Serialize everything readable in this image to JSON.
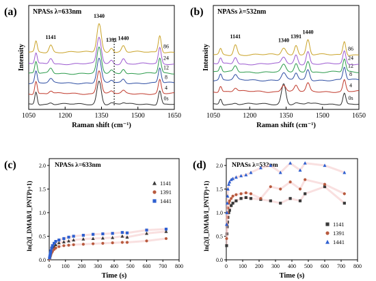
{
  "chart_data": [
    {
      "panel": "(a)",
      "type": "line",
      "title": "NPASs λ=633nm",
      "xlabel": "Raman shift (cm⁻¹)",
      "ylabel": "Intensity",
      "xlim": [
        1050,
        1650
      ],
      "xticks": [
        1050,
        1200,
        1350,
        1500,
        1650
      ],
      "peaks": [
        1080,
        1141,
        1340,
        1391,
        1440,
        1590
      ],
      "peak_labels": [
        {
          "text": "1141",
          "x": 1141,
          "series": 0
        },
        {
          "text": "1340",
          "x": 1340,
          "series": 0
        },
        {
          "text": "1391",
          "x": 1391,
          "series": 0
        },
        {
          "text": "1440",
          "x": 1440,
          "series": 0
        }
      ],
      "dashed_line_x": 1391,
      "series": [
        {
          "name": "0s",
          "color": "#2b2b2b",
          "offset": 0.0,
          "amps": [
            1.2,
            0.15,
            2.2,
            0.12,
            0.12,
            1.3
          ]
        },
        {
          "name": "4",
          "color": "#c0392b",
          "offset": 1.0,
          "amps": [
            1.2,
            0.25,
            2.2,
            0.2,
            0.25,
            1.3
          ]
        },
        {
          "name": "8",
          "color": "#2e4ea3",
          "offset": 2.0,
          "amps": [
            1.1,
            0.35,
            2.3,
            0.25,
            0.35,
            1.4
          ]
        },
        {
          "name": "12",
          "color": "#2a9a4a",
          "offset": 2.9,
          "amps": [
            1.1,
            0.45,
            2.4,
            0.3,
            0.45,
            1.4
          ]
        },
        {
          "name": "24",
          "color": "#9b59d0",
          "offset": 3.8,
          "amps": [
            1.0,
            0.55,
            2.5,
            0.35,
            0.5,
            1.5
          ]
        },
        {
          "name": "86",
          "color": "#c9a227",
          "offset": 4.9,
          "amps": [
            1.0,
            0.7,
            2.7,
            0.45,
            0.6,
            1.6
          ]
        }
      ]
    },
    {
      "panel": "(b)",
      "type": "line",
      "title": "NPASs λ=532nm",
      "xlabel": "Raman shift (cm⁻¹)",
      "ylabel": "Intensity",
      "xlim": [
        1050,
        1650
      ],
      "xticks": [
        1050,
        1200,
        1350,
        1500,
        1650
      ],
      "peaks": [
        1080,
        1141,
        1340,
        1391,
        1440,
        1590
      ],
      "peak_labels": [
        {
          "text": "1141",
          "x": 1141,
          "series": 0
        },
        {
          "text": "1340",
          "x": 1340,
          "series": 0
        },
        {
          "text": "1391",
          "x": 1391,
          "series": 0
        },
        {
          "text": "1440",
          "x": 1440,
          "series": 0
        }
      ],
      "series": [
        {
          "name": "0s",
          "color": "#2b2b2b",
          "offset": 0.0,
          "amps": [
            0.5,
            0.1,
            1.8,
            0.1,
            0.1,
            1.0
          ]
        },
        {
          "name": "4",
          "color": "#c0392b",
          "offset": 1.1,
          "amps": [
            0.5,
            0.3,
            0.6,
            0.5,
            0.7,
            1.0
          ]
        },
        {
          "name": "8",
          "color": "#2e4ea3",
          "offset": 2.1,
          "amps": [
            0.5,
            0.4,
            0.6,
            0.6,
            0.9,
            1.1
          ]
        },
        {
          "name": "12",
          "color": "#2a9a4a",
          "offset": 2.8,
          "amps": [
            0.5,
            0.5,
            0.6,
            0.7,
            1.0,
            1.1
          ]
        },
        {
          "name": "24",
          "color": "#9b59d0",
          "offset": 3.5,
          "amps": [
            0.5,
            0.6,
            0.6,
            0.8,
            1.1,
            1.1
          ]
        },
        {
          "name": "86",
          "color": "#c9a227",
          "offset": 4.3,
          "amps": [
            0.5,
            0.9,
            0.6,
            0.9,
            1.3,
            1.2
          ]
        }
      ]
    },
    {
      "panel": "(c)",
      "type": "scatter",
      "title": "NPASs λ=633nm",
      "xlabel": "Time (s)",
      "ylabel": "ln(2(I_DMAB/I_PNTP)+1)",
      "xlim": [
        0,
        800
      ],
      "ylim": [
        0,
        2.0
      ],
      "xticks": [
        0,
        100,
        200,
        300,
        400,
        500,
        600,
        700,
        800
      ],
      "yticks": [
        0.0,
        0.5,
        1.0,
        1.5,
        2.0
      ],
      "legend_position": "right",
      "x": [
        2,
        4,
        6,
        8,
        10,
        15,
        20,
        30,
        40,
        60,
        90,
        120,
        150,
        210,
        270,
        330,
        390,
        450,
        480,
        600,
        720
      ],
      "series": [
        {
          "name": "1141",
          "marker": "triangle",
          "color": "#3a3a3a",
          "values": [
            0.03,
            0.06,
            0.09,
            0.12,
            0.15,
            0.2,
            0.25,
            0.28,
            0.32,
            0.36,
            0.38,
            0.4,
            0.42,
            0.44,
            0.45,
            0.46,
            0.47,
            0.5,
            0.48,
            0.56,
            0.6
          ]
        },
        {
          "name": "1391",
          "marker": "circle",
          "color": "#b85a3e",
          "values": [
            0.02,
            0.04,
            0.07,
            0.09,
            0.11,
            0.15,
            0.18,
            0.22,
            0.25,
            0.28,
            0.3,
            0.31,
            0.32,
            0.33,
            0.34,
            0.35,
            0.36,
            0.37,
            0.37,
            0.4,
            0.45
          ]
        },
        {
          "name": "1441",
          "marker": "square",
          "color": "#2e5fd0",
          "values": [
            0.04,
            0.08,
            0.12,
            0.15,
            0.19,
            0.25,
            0.3,
            0.35,
            0.39,
            0.42,
            0.45,
            0.48,
            0.5,
            0.52,
            0.54,
            0.55,
            0.56,
            0.58,
            0.57,
            0.63,
            0.65
          ]
        }
      ]
    },
    {
      "panel": "(d)",
      "type": "scatter",
      "title": "NPASs λ=532nm",
      "xlabel": "Time (s)",
      "ylabel": "ln(2(I_DMAB/I_PNTP)+1)",
      "xlim": [
        0,
        800
      ],
      "ylim": [
        0,
        2.0
      ],
      "xticks": [
        0,
        100,
        200,
        300,
        400,
        500,
        600,
        700,
        800
      ],
      "yticks": [
        0.0,
        0.5,
        1.0,
        1.5,
        2.0
      ],
      "legend_position": "bottom-right",
      "x": [
        2,
        4,
        6,
        8,
        10,
        15,
        20,
        30,
        40,
        60,
        90,
        120,
        150,
        210,
        270,
        330,
        390,
        450,
        480,
        600,
        720
      ],
      "series": [
        {
          "name": "1141",
          "marker": "square",
          "color": "#3a3a3a",
          "values": [
            0.3,
            0.55,
            0.7,
            0.8,
            0.9,
            1.0,
            1.05,
            1.15,
            1.2,
            1.25,
            1.3,
            1.32,
            1.3,
            1.28,
            1.25,
            1.2,
            1.3,
            1.25,
            1.4,
            1.55,
            1.2
          ]
        },
        {
          "name": "1391",
          "marker": "circle",
          "color": "#b85a3e",
          "values": [
            0.45,
            0.75,
            0.9,
            1.0,
            1.1,
            1.2,
            1.25,
            1.3,
            1.35,
            1.38,
            1.4,
            1.42,
            1.4,
            1.3,
            1.55,
            1.5,
            1.65,
            1.5,
            1.7,
            1.6,
            1.4
          ]
        },
        {
          "name": "1441",
          "marker": "triangle",
          "color": "#2e5fd0",
          "values": [
            0.75,
            1.0,
            1.2,
            1.35,
            1.5,
            1.6,
            1.65,
            1.7,
            1.72,
            1.75,
            1.78,
            1.8,
            1.85,
            1.95,
            2.0,
            1.85,
            2.05,
            1.9,
            2.05,
            2.0,
            1.85
          ]
        }
      ]
    }
  ]
}
